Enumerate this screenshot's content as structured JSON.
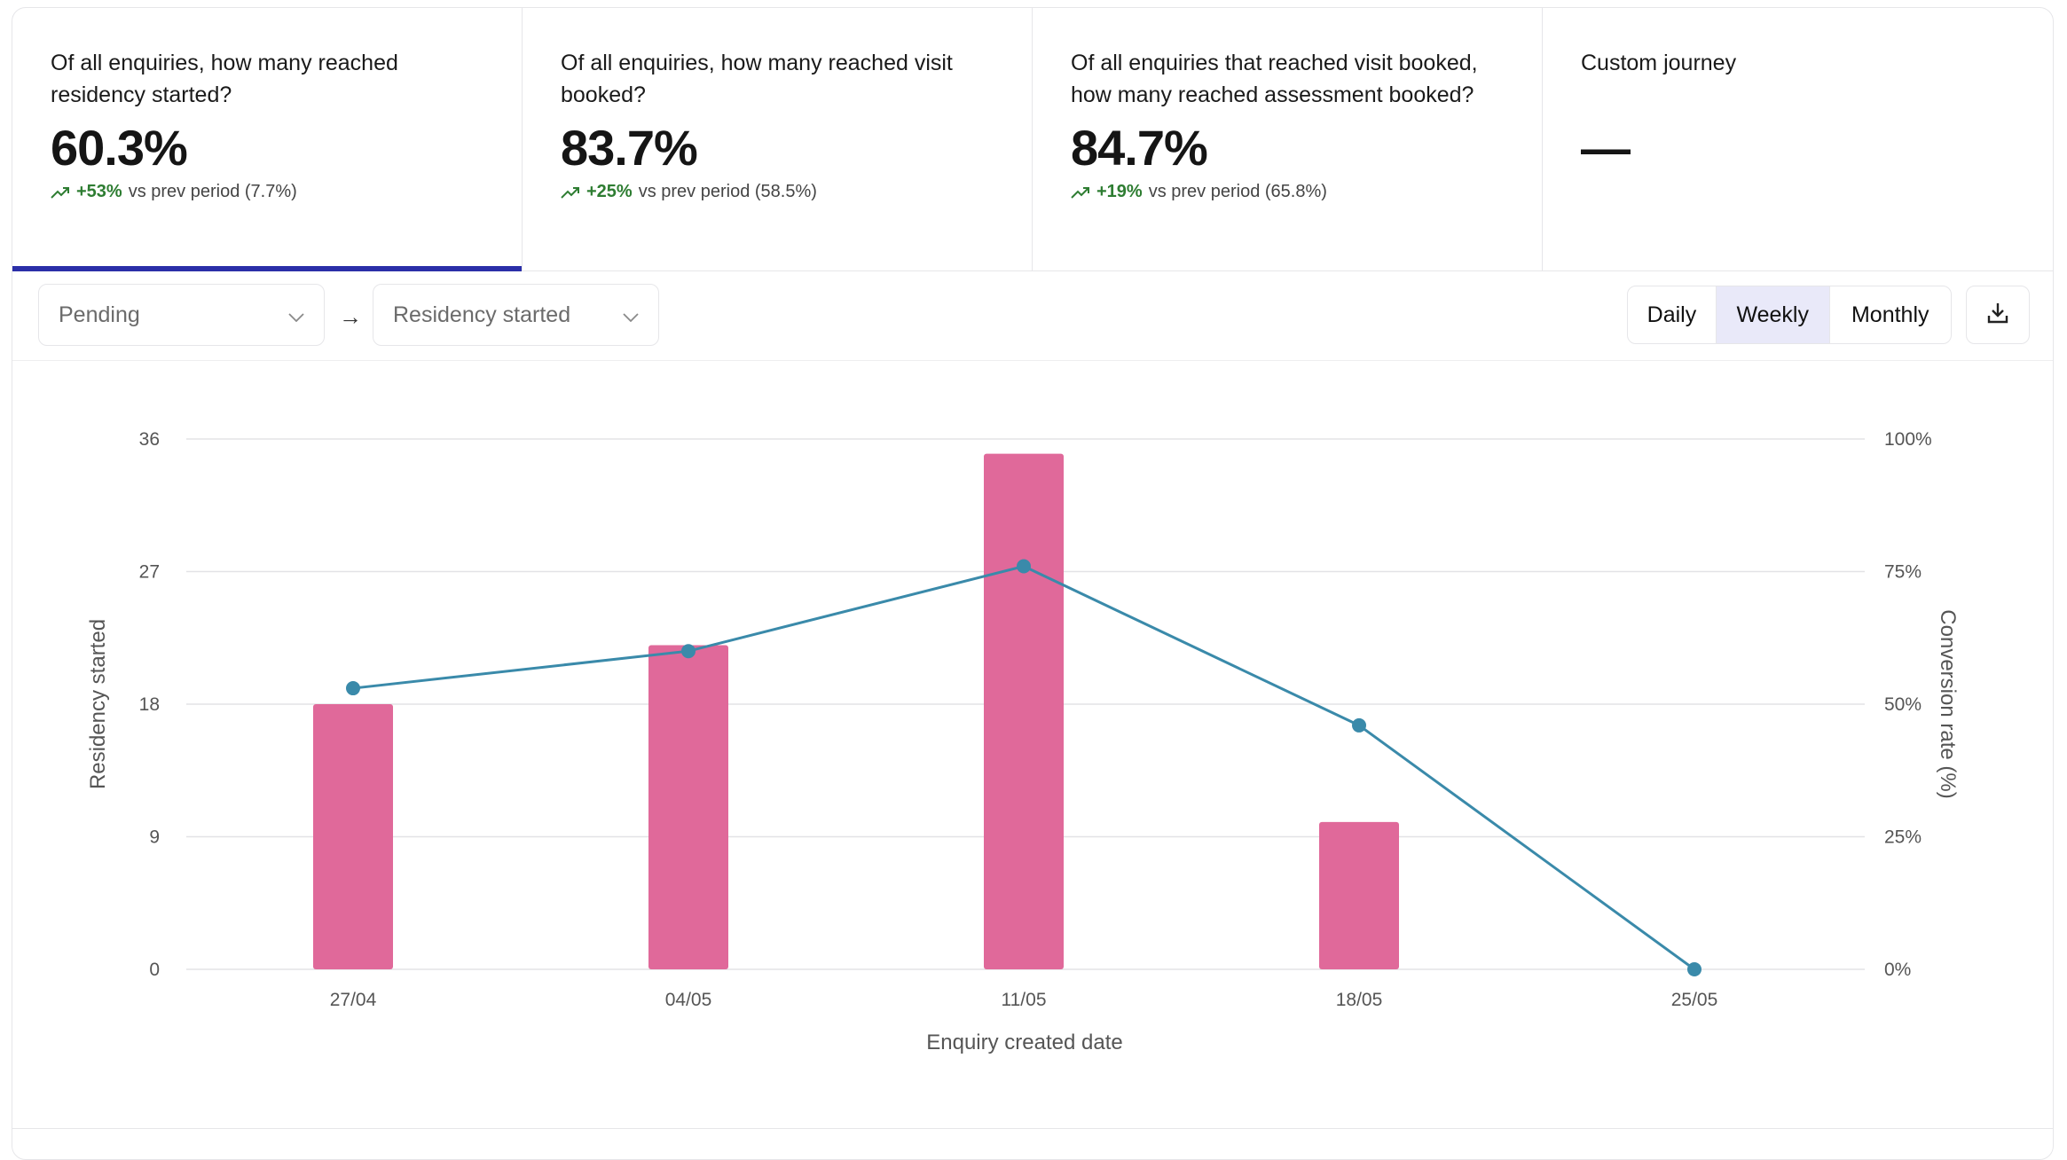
{
  "kpis": [
    {
      "question": "Of all enquiries, how many reached residency started?",
      "value": "60.3%",
      "delta": "+53%",
      "comparison": "vs prev period (7.7%)",
      "active": true
    },
    {
      "question": "Of all enquiries, how many reached visit booked?",
      "value": "83.7%",
      "delta": "+25%",
      "comparison": "vs prev period (58.5%)",
      "active": false
    },
    {
      "question": "Of all enquiries that reached visit booked, how many reached assessment booked?",
      "value": "84.7%",
      "delta": "+19%",
      "comparison": "vs prev period (65.8%)",
      "active": false
    },
    {
      "question": "Custom journey",
      "value": "—",
      "delta": "",
      "comparison": "",
      "active": false
    }
  ],
  "controls": {
    "from_stage": "Pending",
    "arrow": "→",
    "to_stage": "Residency started",
    "granularity": [
      "Daily",
      "Weekly",
      "Monthly"
    ],
    "selected_granularity": "Weekly",
    "download_icon": "download-icon"
  },
  "colors": {
    "bar": "#e0699a",
    "line": "#3a8aaa",
    "accent": "#2b2fa8",
    "delta_up": "#2e7d32",
    "selected_segment": "#e9e9f9"
  },
  "chart_data": {
    "type": "bar",
    "categories": [
      "27/04",
      "04/05",
      "11/05",
      "18/05",
      "25/05"
    ],
    "series": [
      {
        "name": "Residency started",
        "type": "bar",
        "axis": "left",
        "values": [
          18,
          22,
          35,
          10,
          0
        ]
      },
      {
        "name": "Conversion rate (%)",
        "type": "line",
        "axis": "right",
        "values": [
          53,
          60,
          76,
          46,
          0
        ]
      }
    ],
    "xlabel": "Enquiry created date",
    "ylabel": "Residency started",
    "y2label": "Conversion rate (%)",
    "ylim": [
      0,
      36
    ],
    "yticks": [
      0,
      9,
      18,
      27,
      36
    ],
    "y2lim": [
      0,
      100
    ],
    "y2ticks": [
      "0%",
      "25%",
      "50%",
      "75%",
      "100%"
    ],
    "grid": "horizontal"
  }
}
